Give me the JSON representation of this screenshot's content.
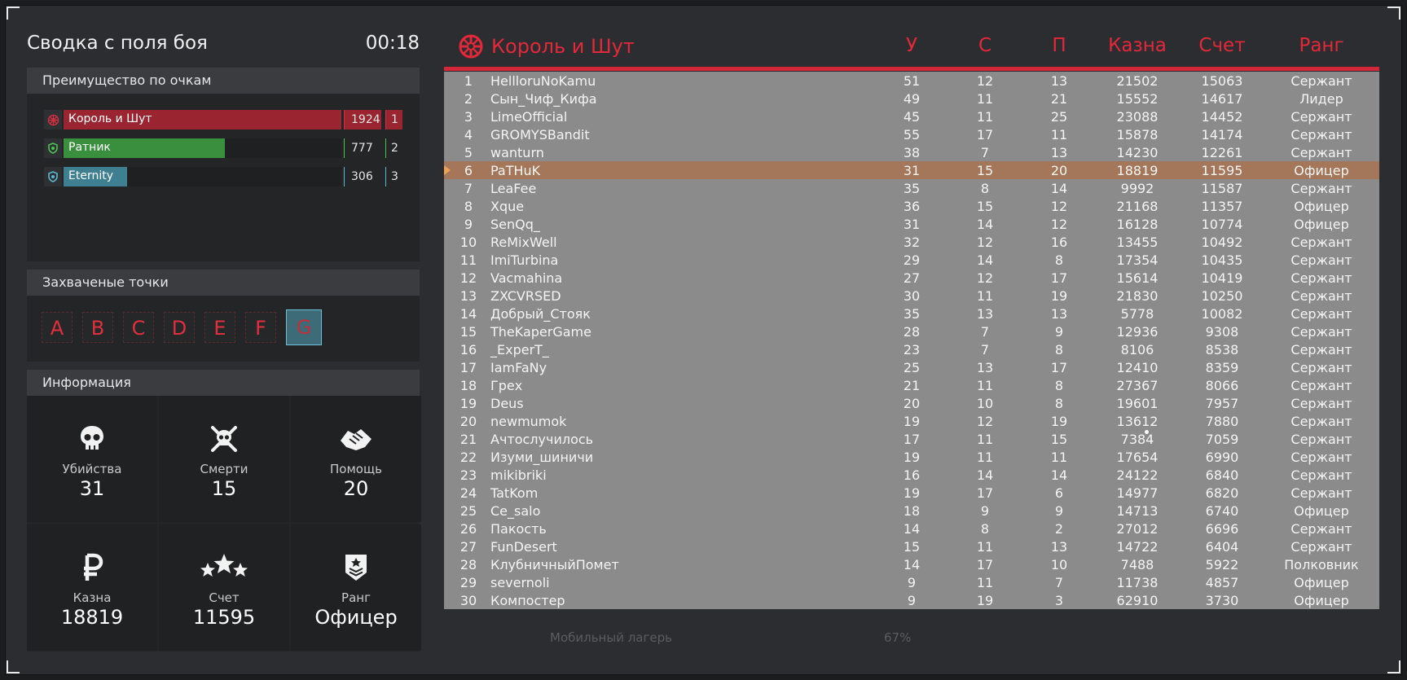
{
  "summary": {
    "title": "Сводка с поля боя",
    "timer": "00:18"
  },
  "score_panel": {
    "header": "Преимущество по очкам",
    "teams": [
      {
        "name": "Король и Шут",
        "points": "1924",
        "place": "1",
        "fraction": 1.0,
        "color": "#9a2430",
        "accent": "#d03040",
        "icon": "team-emblem-icon"
      },
      {
        "name": "Ратник",
        "points": "777",
        "place": "2",
        "fraction": 0.58,
        "color": "#3a8f3e",
        "accent": "#4ec257",
        "icon": "shield-icon"
      },
      {
        "name": "Eternity",
        "points": "306",
        "place": "3",
        "fraction": 0.23,
        "color": "#3f7f92",
        "accent": "#5cb9d1",
        "icon": "shield-icon"
      }
    ]
  },
  "points_panel": {
    "header": "Захваченые точки",
    "points": [
      {
        "label": "A",
        "owned": false
      },
      {
        "label": "B",
        "owned": false
      },
      {
        "label": "C",
        "owned": false
      },
      {
        "label": "D",
        "owned": false
      },
      {
        "label": "E",
        "owned": false
      },
      {
        "label": "F",
        "owned": false
      },
      {
        "label": "G",
        "owned": true
      }
    ]
  },
  "info_panel": {
    "header": "Информация",
    "stats": [
      {
        "label": "Убийства",
        "value": "31",
        "icon": "skull-icon"
      },
      {
        "label": "Смерти",
        "value": "15",
        "icon": "skull-crossbones-icon"
      },
      {
        "label": "Помощь",
        "value": "20",
        "icon": "handshake-icon"
      },
      {
        "label": "Казна",
        "value": "18819",
        "icon": "ruble-icon"
      },
      {
        "label": "Счет",
        "value": "11595",
        "icon": "three-stars-icon"
      },
      {
        "label": "Ранг",
        "value": "Офицер",
        "icon": "rank-badge-icon"
      }
    ]
  },
  "table": {
    "team_name": "Король и Шут",
    "columns": [
      "У",
      "С",
      "П",
      "Казна",
      "Счет",
      "Ранг"
    ],
    "self_index": 5,
    "rows": [
      [
        "1",
        "HellloruNoKamu",
        "51",
        "12",
        "13",
        "21502",
        "15063",
        "Сержант"
      ],
      [
        "2",
        "Сын_Чиф_Кифа",
        "49",
        "11",
        "21",
        "15552",
        "14617",
        "Лидер"
      ],
      [
        "3",
        "LimeOfficial",
        "45",
        "11",
        "25",
        "23088",
        "14452",
        "Сержант"
      ],
      [
        "4",
        "GROMYSBandit",
        "55",
        "17",
        "11",
        "15878",
        "14174",
        "Сержант"
      ],
      [
        "5",
        "wanturn",
        "38",
        "7",
        "13",
        "14230",
        "12261",
        "Сержант"
      ],
      [
        "6",
        "PaTHuK",
        "31",
        "15",
        "20",
        "18819",
        "11595",
        "Офицер"
      ],
      [
        "7",
        "LeaFee",
        "35",
        "8",
        "14",
        "9992",
        "11587",
        "Сержант"
      ],
      [
        "8",
        "Xque",
        "36",
        "15",
        "12",
        "21168",
        "11357",
        "Офицер"
      ],
      [
        "9",
        "SenQq_",
        "31",
        "14",
        "12",
        "16128",
        "10774",
        "Офицер"
      ],
      [
        "10",
        "ReMixWell",
        "32",
        "12",
        "16",
        "13455",
        "10492",
        "Сержант"
      ],
      [
        "11",
        "ImiTurbina",
        "29",
        "14",
        "8",
        "17354",
        "10435",
        "Сержант"
      ],
      [
        "12",
        "Vacmahina",
        "27",
        "12",
        "17",
        "15614",
        "10419",
        "Сержант"
      ],
      [
        "13",
        "ZXCVRSED",
        "30",
        "11",
        "19",
        "21830",
        "10250",
        "Сержант"
      ],
      [
        "14",
        "Добрый_Стояк",
        "35",
        "13",
        "13",
        "5778",
        "10082",
        "Сержант"
      ],
      [
        "15",
        "TheKaperGame",
        "28",
        "7",
        "9",
        "12936",
        "9308",
        "Сержант"
      ],
      [
        "16",
        "_ExperT_",
        "23",
        "7",
        "8",
        "8106",
        "8538",
        "Сержант"
      ],
      [
        "17",
        "IamFaNy",
        "25",
        "13",
        "17",
        "12410",
        "8359",
        "Сержант"
      ],
      [
        "18",
        "Грех",
        "21",
        "11",
        "8",
        "27367",
        "8066",
        "Сержант"
      ],
      [
        "19",
        "Deus",
        "20",
        "10",
        "8",
        "19601",
        "7957",
        "Сержант"
      ],
      [
        "20",
        "newmumok",
        "19",
        "12",
        "19",
        "13612",
        "7880",
        "Сержант"
      ],
      [
        "21",
        "Ачтослучилось",
        "17",
        "11",
        "15",
        "7384",
        "7059",
        "Сержант"
      ],
      [
        "22",
        "Изуми_шиничи",
        "19",
        "11",
        "11",
        "17654",
        "6990",
        "Сержант"
      ],
      [
        "23",
        "mikibriki",
        "16",
        "14",
        "14",
        "24122",
        "6840",
        "Сержант"
      ],
      [
        "24",
        "TatKom",
        "19",
        "17",
        "6",
        "14977",
        "6820",
        "Сержант"
      ],
      [
        "25",
        "Ce_salo",
        "18",
        "9",
        "9",
        "14713",
        "6740",
        "Офицер"
      ],
      [
        "26",
        "Пакость",
        "14",
        "8",
        "2",
        "27012",
        "6696",
        "Сержант"
      ],
      [
        "27",
        "FunDesert",
        "15",
        "11",
        "13",
        "14722",
        "6404",
        "Сержант"
      ],
      [
        "28",
        "КлубничныйПомет",
        "14",
        "17",
        "10",
        "7488",
        "5922",
        "Полковник"
      ],
      [
        "29",
        "severnoli",
        "9",
        "11",
        "7",
        "11738",
        "4857",
        "Офицер"
      ],
      [
        "30",
        "Компостер",
        "9",
        "19",
        "3",
        "62910",
        "3730",
        "Офицер"
      ]
    ]
  },
  "background": {
    "camp_label": "Мобильный лагерь",
    "camp_percent": "67%"
  }
}
